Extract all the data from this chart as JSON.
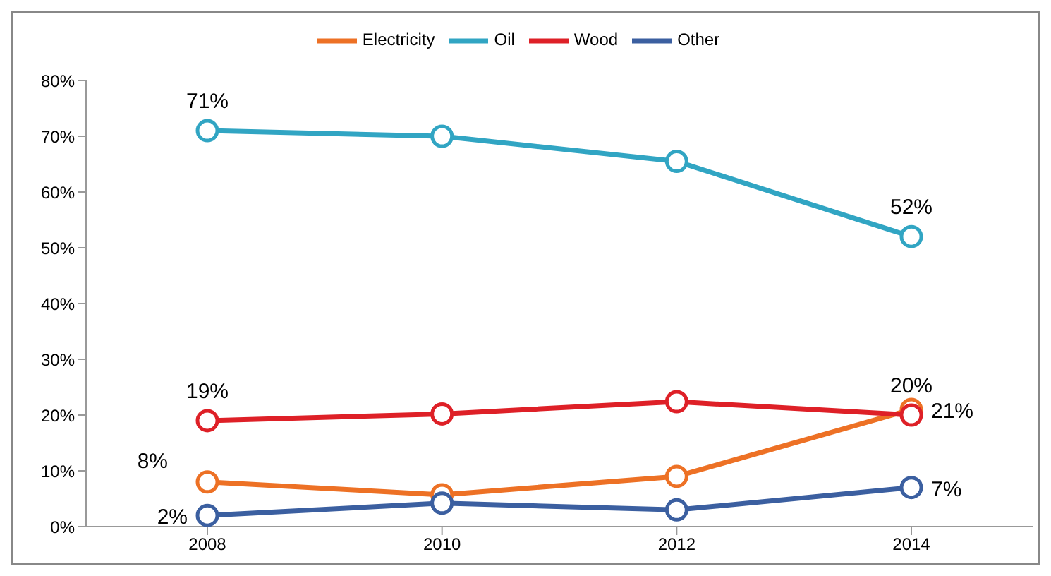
{
  "chart_data": {
    "type": "line",
    "categories": [
      "2008",
      "2010",
      "2012",
      "2014"
    ],
    "series": [
      {
        "name": "Electricity",
        "color": "#ed7125",
        "values": [
          8,
          5.7,
          9,
          21
        ],
        "value_labels": [
          "8%",
          null,
          null,
          "21%"
        ]
      },
      {
        "name": "Oil",
        "color": "#31a5c3",
        "values": [
          71,
          70,
          65.5,
          52
        ],
        "value_labels": [
          "71%",
          null,
          null,
          "52%"
        ]
      },
      {
        "name": "Wood",
        "color": "#de2027",
        "values": [
          19,
          20.2,
          22.4,
          20
        ],
        "value_labels": [
          "19%",
          null,
          null,
          "20%"
        ]
      },
      {
        "name": "Other",
        "color": "#3b5fa0",
        "values": [
          2,
          4.2,
          3,
          7
        ],
        "value_labels": [
          "2%",
          null,
          null,
          "7%"
        ]
      }
    ],
    "ylim": [
      0,
      80
    ],
    "yticks": [
      {
        "value": 0,
        "label": "0%"
      },
      {
        "value": 10,
        "label": "10%"
      },
      {
        "value": 20,
        "label": "20%"
      },
      {
        "value": 30,
        "label": "30%"
      },
      {
        "value": 40,
        "label": "40%"
      },
      {
        "value": 50,
        "label": "50%"
      },
      {
        "value": 60,
        "label": "60%"
      },
      {
        "value": 70,
        "label": "70%"
      },
      {
        "value": 80,
        "label": "80%"
      }
    ],
    "grid": false,
    "legend": "top",
    "marker": "circle",
    "line_style": "solid"
  }
}
